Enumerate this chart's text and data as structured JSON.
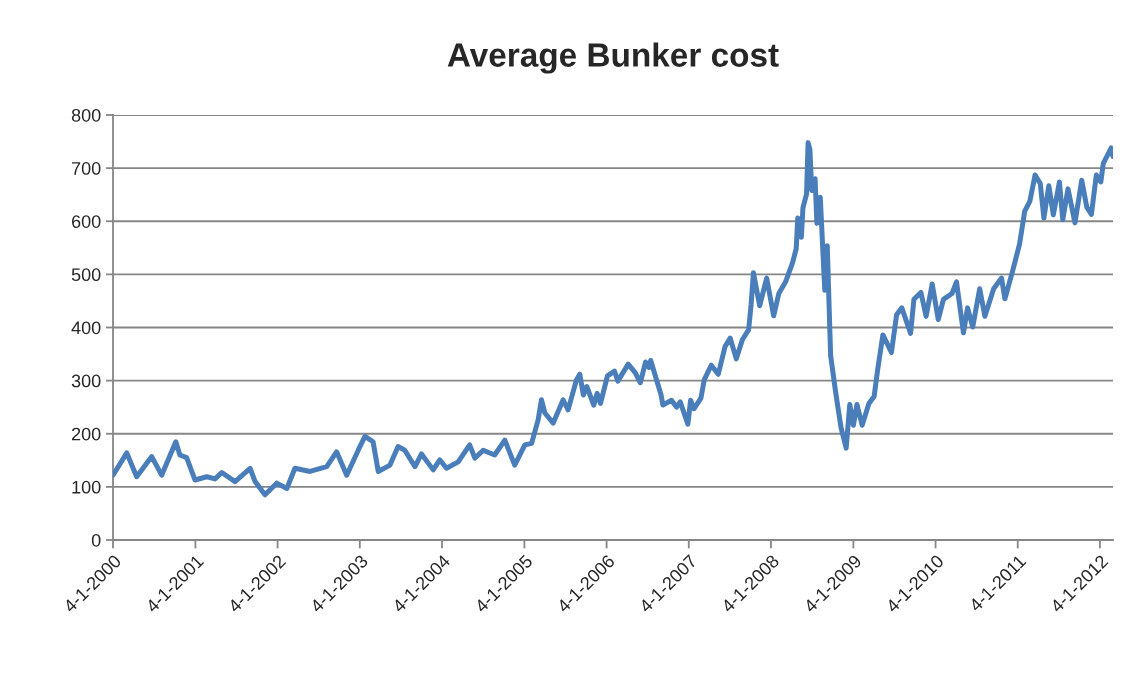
{
  "chart_data": {
    "type": "line",
    "title": "Average Bunker cost",
    "x": [
      "2000-01-04",
      "2000-03-05",
      "2000-04-18",
      "2000-06-24",
      "2000-08-07",
      "2000-10-09",
      "2000-10-27",
      "2000-11-26",
      "2001-01-02",
      "2001-02-24",
      "2001-04-01",
      "2001-05-01",
      "2001-06-29",
      "2001-09-04",
      "2001-09-26",
      "2001-11-09",
      "2001-12-31",
      "2002-02-14",
      "2002-03-22",
      "2002-05-28",
      "2002-08-10",
      "2002-09-23",
      "2002-11-07",
      "2002-12-28",
      "2003-01-27",
      "2003-03-04",
      "2003-03-27",
      "2003-05-18",
      "2003-06-23",
      "2003-07-23",
      "2003-09-06",
      "2003-10-05",
      "2003-11-26",
      "2003-12-25",
      "2004-01-24",
      "2004-03-16",
      "2004-05-06",
      "2004-05-29",
      "2004-07-05",
      "2004-08-25",
      "2004-10-09",
      "2004-11-22",
      "2005-01-06",
      "2005-02-05",
      "2005-03-06",
      "2005-03-21",
      "2005-04-05",
      "2005-05-12",
      "2005-06-25",
      "2005-07-17",
      "2005-08-23",
      "2005-09-07",
      "2005-09-23",
      "2005-10-08",
      "2005-11-08",
      "2005-11-23",
      "2005-12-08",
      "2006-01-08",
      "2006-02-08",
      "2006-02-23",
      "2006-04-10",
      "2006-05-11",
      "2006-06-03",
      "2006-06-26",
      "2006-07-11",
      "2006-07-19",
      "2006-09-03",
      "2006-09-11",
      "2006-10-19",
      "2006-11-11",
      "2006-11-27",
      "2006-12-31",
      "2007-01-12",
      "2007-01-27",
      "2007-02-27",
      "2007-03-14",
      "2007-04-14",
      "2007-05-15",
      "2007-06-14",
      "2007-07-07",
      "2007-08-03",
      "2007-08-30",
      "2007-09-27",
      "2007-10-08",
      "2007-10-18",
      "2007-11-15",
      "2007-12-16",
      "2008-01-16",
      "2008-02-08",
      "2008-03-09",
      "2008-04-09",
      "2008-04-25",
      "2008-05-02",
      "2008-05-18",
      "2008-05-25",
      "2008-06-10",
      "2008-06-17",
      "2008-06-25",
      "2008-07-03",
      "2008-07-18",
      "2008-07-26",
      "2008-08-10",
      "2008-08-30",
      "2008-09-10",
      "2008-09-25",
      "2008-10-18",
      "2008-11-10",
      "2008-12-03",
      "2008-12-19",
      "2009-01-04",
      "2009-01-20",
      "2009-02-12",
      "2009-03-14",
      "2009-04-06",
      "2009-04-22",
      "2009-05-15",
      "2009-06-22",
      "2009-07-15",
      "2009-08-07",
      "2009-09-15",
      "2009-09-30",
      "2009-10-31",
      "2009-11-23",
      "2009-12-20",
      "2010-01-16",
      "2010-02-08",
      "2010-03-18",
      "2010-04-07",
      "2010-05-08",
      "2010-05-26",
      "2010-06-18",
      "2010-07-19",
      "2010-08-11",
      "2010-09-19",
      "2010-10-24",
      "2010-11-08",
      "2010-12-12",
      "2011-01-12",
      "2011-02-04",
      "2011-02-27",
      "2011-03-22",
      "2011-04-14",
      "2011-04-30",
      "2011-05-22",
      "2011-06-11",
      "2011-07-08",
      "2011-07-23",
      "2011-08-15",
      "2011-09-15",
      "2011-10-15",
      "2011-11-07",
      "2011-11-27",
      "2011-12-19",
      "2012-01-08",
      "2012-01-19",
      "2012-02-23",
      "2012-03-02"
    ],
    "series": [
      {
        "color": "#4a7ebb",
        "values": [
          122,
          164,
          119,
          157,
          122,
          185,
          160,
          155,
          113,
          119,
          115,
          127,
          110,
          135,
          110,
          85,
          107,
          97,
          135,
          129,
          138,
          166,
          122,
          169,
          195,
          185,
          129,
          141,
          176,
          169,
          138,
          162,
          132,
          151,
          135,
          147,
          179,
          154,
          169,
          160,
          188,
          141,
          179,
          182,
          226,
          264,
          239,
          220,
          264,
          245,
          301,
          312,
          273,
          289,
          254,
          276,
          257,
          309,
          318,
          299,
          331,
          315,
          296,
          335,
          325,
          338,
          273,
          254,
          263,
          250,
          260,
          218,
          263,
          247,
          267,
          302,
          329,
          312,
          364,
          380,
          341,
          377,
          396,
          444,
          503,
          441,
          493,
          422,
          464,
          486,
          522,
          548,
          606,
          570,
          625,
          651,
          748,
          735,
          658,
          680,
          596,
          645,
          470,
          554,
          347,
          276,
          212,
          173,
          255,
          216,
          255,
          216,
          257,
          270,
          321,
          386,
          353,
          424,
          437,
          389,
          453,
          466,
          421,
          482,
          415,
          453,
          464,
          486,
          390,
          437,
          401,
          473,
          421,
          473,
          493,
          454,
          506,
          557,
          619,
          638,
          687,
          671,
          606,
          667,
          612,
          674,
          603,
          661,
          597,
          677,
          626,
          613,
          687,
          674,
          709,
          738,
          722
        ]
      }
    ],
    "xlim": [
      "2000-01-04",
      "2012-03-02"
    ],
    "xticks": [
      {
        "value": "2000-01-04",
        "label": "4-1-2000"
      },
      {
        "value": "2001-01-04",
        "label": "4-1-2001"
      },
      {
        "value": "2002-01-04",
        "label": "4-1-2002"
      },
      {
        "value": "2003-01-04",
        "label": "4-1-2003"
      },
      {
        "value": "2004-01-04",
        "label": "4-1-2004"
      },
      {
        "value": "2005-01-04",
        "label": "4-1-2005"
      },
      {
        "value": "2006-01-04",
        "label": "4-1-2006"
      },
      {
        "value": "2007-01-04",
        "label": "4-1-2007"
      },
      {
        "value": "2008-01-04",
        "label": "4-1-2008"
      },
      {
        "value": "2009-01-04",
        "label": "4-1-2009"
      },
      {
        "value": "2010-01-04",
        "label": "4-1-2010"
      },
      {
        "value": "2011-01-04",
        "label": "4-1-2011"
      },
      {
        "value": "2012-01-04",
        "label": "4-1-2012"
      }
    ],
    "ylim": [
      0,
      800
    ],
    "yticks": [
      0,
      100,
      200,
      300,
      400,
      500,
      600,
      700,
      800
    ],
    "grid": "y",
    "marker": "none",
    "line_style": "solid"
  }
}
